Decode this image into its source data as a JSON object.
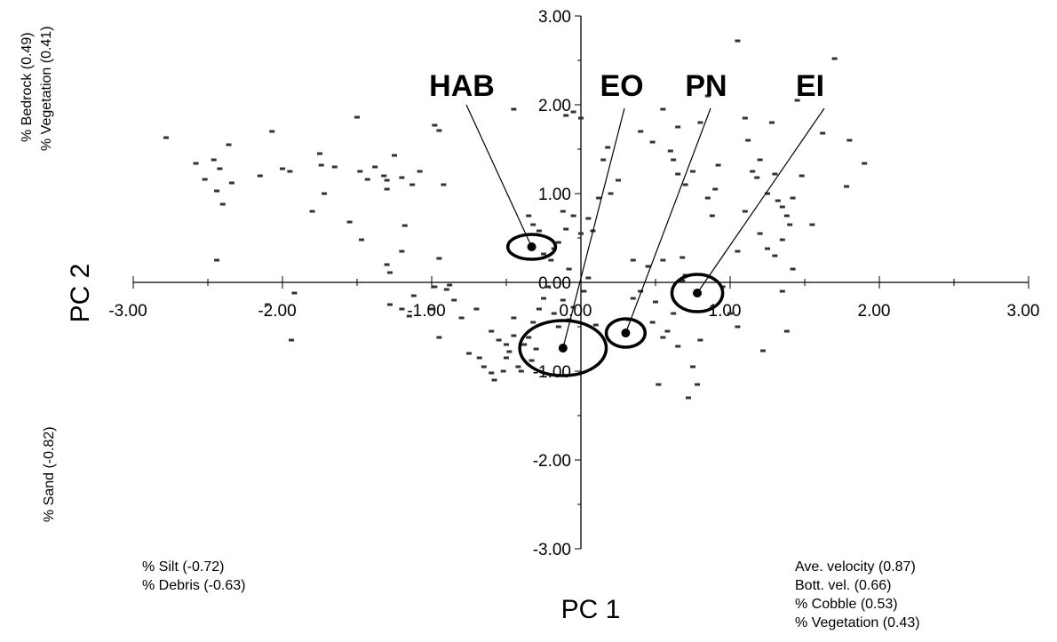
{
  "chart_data": {
    "type": "scatter",
    "xlabel": "PC 1",
    "ylabel": "PC 2",
    "xlim": [
      -3,
      3
    ],
    "ylim": [
      -3,
      3
    ],
    "x_ticks": [
      "-3.00",
      "-2.00",
      "-1.00",
      "0.00",
      "1.00",
      "2.00",
      "3.00"
    ],
    "y_ticks": [
      "3.00",
      "2.00",
      "1.00",
      "0.00",
      "-1.00",
      "-2.00",
      "-3.00"
    ],
    "grid": false,
    "groups": [
      {
        "label": "HAB",
        "x": -0.33,
        "y": 0.4,
        "rx": 0.16,
        "ry": 0.14
      },
      {
        "label": "EO",
        "x": -0.12,
        "y": -0.74,
        "rx": 0.29,
        "ry": 0.31
      },
      {
        "label": "PN",
        "x": 0.3,
        "y": -0.57,
        "rx": 0.13,
        "ry": 0.16
      },
      {
        "label": "EI",
        "x": 0.78,
        "y": -0.12,
        "rx": 0.17,
        "ry": 0.21
      }
    ],
    "points": [
      {
        "x": -2.78,
        "y": 1.63
      },
      {
        "x": -2.58,
        "y": 1.34
      },
      {
        "x": -2.46,
        "y": 1.38
      },
      {
        "x": -2.52,
        "y": 1.16
      },
      {
        "x": -2.44,
        "y": 1.03
      },
      {
        "x": -2.4,
        "y": 0.88
      },
      {
        "x": -2.42,
        "y": 1.28
      },
      {
        "x": -2.36,
        "y": 1.55
      },
      {
        "x": -2.34,
        "y": 1.12
      },
      {
        "x": -2.44,
        "y": 0.25
      },
      {
        "x": -2.07,
        "y": 1.7
      },
      {
        "x": -2.15,
        "y": 1.2
      },
      {
        "x": -2.0,
        "y": 1.28
      },
      {
        "x": -1.95,
        "y": 1.25
      },
      {
        "x": -1.75,
        "y": 1.45
      },
      {
        "x": -1.74,
        "y": 1.32
      },
      {
        "x": -1.65,
        "y": 1.3
      },
      {
        "x": -1.72,
        "y": 1.0
      },
      {
        "x": -1.8,
        "y": 0.8
      },
      {
        "x": -1.55,
        "y": 0.68
      },
      {
        "x": -1.5,
        "y": 1.86
      },
      {
        "x": -1.47,
        "y": 0.48
      },
      {
        "x": -1.38,
        "y": 1.3
      },
      {
        "x": -1.48,
        "y": 1.25
      },
      {
        "x": -1.43,
        "y": 1.16
      },
      {
        "x": -1.32,
        "y": 1.2
      },
      {
        "x": -1.3,
        "y": 1.05
      },
      {
        "x": -1.3,
        "y": 1.15
      },
      {
        "x": -1.25,
        "y": 1.43
      },
      {
        "x": -1.2,
        "y": 1.18
      },
      {
        "x": -1.18,
        "y": 0.64
      },
      {
        "x": -1.13,
        "y": 1.1
      },
      {
        "x": -1.3,
        "y": 0.2
      },
      {
        "x": -1.2,
        "y": 0.35
      },
      {
        "x": -1.08,
        "y": 1.25
      },
      {
        "x": -0.92,
        "y": 1.1
      },
      {
        "x": -0.95,
        "y": 0.27
      },
      {
        "x": -1.28,
        "y": 0.11
      },
      {
        "x": -0.98,
        "y": 1.77
      },
      {
        "x": -0.95,
        "y": 1.71
      },
      {
        "x": -2.1,
        "y": -0.25
      },
      {
        "x": -1.92,
        "y": -0.12
      },
      {
        "x": -1.94,
        "y": -0.65
      },
      {
        "x": -1.28,
        "y": -0.25
      },
      {
        "x": -1.2,
        "y": -0.3
      },
      {
        "x": -1.15,
        "y": -0.38
      },
      {
        "x": -1.12,
        "y": -0.15
      },
      {
        "x": -1.0,
        "y": -0.3
      },
      {
        "x": -0.95,
        "y": -0.62
      },
      {
        "x": -0.98,
        "y": -0.05
      },
      {
        "x": -0.88,
        "y": -0.03
      },
      {
        "x": -0.9,
        "y": -0.08
      },
      {
        "x": -0.85,
        "y": -0.2
      },
      {
        "x": -0.8,
        "y": -0.4
      },
      {
        "x": -0.7,
        "y": -0.3
      },
      {
        "x": -0.75,
        "y": -0.8
      },
      {
        "x": -0.68,
        "y": -0.85
      },
      {
        "x": -0.6,
        "y": -0.55
      },
      {
        "x": -0.65,
        "y": -0.95
      },
      {
        "x": -0.6,
        "y": -1.02
      },
      {
        "x": -0.58,
        "y": -1.1
      },
      {
        "x": -0.52,
        "y": -1.0
      },
      {
        "x": -0.55,
        "y": -0.65
      },
      {
        "x": -0.5,
        "y": -0.7
      },
      {
        "x": -0.48,
        "y": -0.78
      },
      {
        "x": -0.5,
        "y": -0.85
      },
      {
        "x": -0.45,
        "y": -0.4
      },
      {
        "x": -0.45,
        "y": -0.6
      },
      {
        "x": -0.42,
        "y": -0.95
      },
      {
        "x": -0.4,
        "y": -1.0
      },
      {
        "x": -0.38,
        "y": -0.7
      },
      {
        "x": -0.35,
        "y": -0.62
      },
      {
        "x": -0.33,
        "y": -0.88
      },
      {
        "x": -0.3,
        "y": -0.75
      },
      {
        "x": -0.32,
        "y": -0.45
      },
      {
        "x": -0.28,
        "y": -0.3
      },
      {
        "x": -0.25,
        "y": -0.18
      },
      {
        "x": -0.22,
        "y": -0.05
      },
      {
        "x": -0.18,
        "y": -0.35
      },
      {
        "x": -0.15,
        "y": -0.5
      },
      {
        "x": -0.12,
        "y": -0.2
      },
      {
        "x": -0.08,
        "y": -0.42
      },
      {
        "x": -0.05,
        "y": -0.28
      },
      {
        "x": 0.02,
        "y": -0.1
      },
      {
        "x": 0.05,
        "y": 0.05
      },
      {
        "x": 0.1,
        "y": -0.48
      },
      {
        "x": -0.35,
        "y": 0.75
      },
      {
        "x": -0.32,
        "y": 0.65
      },
      {
        "x": -0.28,
        "y": 0.58
      },
      {
        "x": -0.25,
        "y": 0.32
      },
      {
        "x": -0.2,
        "y": 0.25
      },
      {
        "x": -0.18,
        "y": 0.38
      },
      {
        "x": -0.15,
        "y": 0.45
      },
      {
        "x": -0.1,
        "y": 0.6
      },
      {
        "x": -0.08,
        "y": 0.15
      },
      {
        "x": -0.12,
        "y": 0.8
      },
      {
        "x": -0.05,
        "y": 0.75
      },
      {
        "x": 0.0,
        "y": 0.55
      },
      {
        "x": 0.05,
        "y": 0.72
      },
      {
        "x": 0.08,
        "y": 0.58
      },
      {
        "x": 0.12,
        "y": 0.95
      },
      {
        "x": 0.2,
        "y": 1.0
      },
      {
        "x": 0.25,
        "y": 1.15
      },
      {
        "x": 0.15,
        "y": 1.38
      },
      {
        "x": 0.18,
        "y": 1.52
      },
      {
        "x": -0.45,
        "y": 1.95
      },
      {
        "x": -0.05,
        "y": 1.92
      },
      {
        "x": -0.1,
        "y": 1.88
      },
      {
        "x": 0.0,
        "y": 1.85
      },
      {
        "x": 0.4,
        "y": 1.7
      },
      {
        "x": 0.48,
        "y": 1.58
      },
      {
        "x": 0.35,
        "y": 0.25
      },
      {
        "x": 0.4,
        "y": -0.1
      },
      {
        "x": 0.45,
        "y": 0.18
      },
      {
        "x": 0.5,
        "y": -0.22
      },
      {
        "x": 0.48,
        "y": -0.45
      },
      {
        "x": 0.55,
        "y": -0.62
      },
      {
        "x": 0.58,
        "y": -0.55
      },
      {
        "x": 0.62,
        "y": -0.35
      },
      {
        "x": 0.65,
        "y": -0.72
      },
      {
        "x": 0.7,
        "y": 0.08
      },
      {
        "x": 0.68,
        "y": 0.28
      },
      {
        "x": 0.62,
        "y": 1.38
      },
      {
        "x": 0.6,
        "y": 1.48
      },
      {
        "x": 0.65,
        "y": 1.22
      },
      {
        "x": 0.7,
        "y": 1.1
      },
      {
        "x": 0.75,
        "y": 1.25
      },
      {
        "x": 0.8,
        "y": 1.8
      },
      {
        "x": 0.85,
        "y": 0.95
      },
      {
        "x": 0.88,
        "y": 0.75
      },
      {
        "x": 0.9,
        "y": 1.05
      },
      {
        "x": 0.92,
        "y": 1.32
      },
      {
        "x": 0.55,
        "y": 1.95
      },
      {
        "x": 0.65,
        "y": 1.75
      },
      {
        "x": 0.85,
        "y": 2.1
      },
      {
        "x": 1.05,
        "y": 2.72
      },
      {
        "x": 1.1,
        "y": 1.85
      },
      {
        "x": 1.15,
        "y": 1.25
      },
      {
        "x": 1.12,
        "y": 1.6
      },
      {
        "x": 1.2,
        "y": 1.38
      },
      {
        "x": 1.18,
        "y": 1.18
      },
      {
        "x": 1.25,
        "y": 1.0
      },
      {
        "x": 1.3,
        "y": 1.22
      },
      {
        "x": 1.28,
        "y": 1.8
      },
      {
        "x": 1.32,
        "y": 0.92
      },
      {
        "x": 1.35,
        "y": 0.85
      },
      {
        "x": 1.38,
        "y": 0.75
      },
      {
        "x": 1.4,
        "y": 0.65
      },
      {
        "x": 1.35,
        "y": 0.48
      },
      {
        "x": 1.25,
        "y": 0.38
      },
      {
        "x": 1.2,
        "y": 0.55
      },
      {
        "x": 1.3,
        "y": 0.3
      },
      {
        "x": 1.42,
        "y": 0.95
      },
      {
        "x": 1.48,
        "y": 1.2
      },
      {
        "x": 1.45,
        "y": 2.05
      },
      {
        "x": 1.62,
        "y": 1.68
      },
      {
        "x": 1.7,
        "y": 2.52
      },
      {
        "x": 1.78,
        "y": 1.08
      },
      {
        "x": 1.8,
        "y": 1.6
      },
      {
        "x": 1.9,
        "y": 1.34
      },
      {
        "x": 1.55,
        "y": 0.65
      },
      {
        "x": 1.05,
        "y": 0.35
      },
      {
        "x": 1.1,
        "y": 0.8
      },
      {
        "x": 1.42,
        "y": 0.15
      },
      {
        "x": 1.35,
        "y": -0.1
      },
      {
        "x": 1.38,
        "y": -0.55
      },
      {
        "x": 1.05,
        "y": -0.5
      },
      {
        "x": 1.22,
        "y": -0.77
      },
      {
        "x": 1.0,
        "y": -0.35
      },
      {
        "x": 0.95,
        "y": -0.05
      },
      {
        "x": 0.8,
        "y": -0.65
      },
      {
        "x": 0.75,
        "y": -0.95
      },
      {
        "x": 0.72,
        "y": -1.3
      },
      {
        "x": 0.78,
        "y": -1.15
      },
      {
        "x": 0.52,
        "y": -1.15
      },
      {
        "x": 0.35,
        "y": -0.18
      },
      {
        "x": 0.32,
        "y": -0.42
      },
      {
        "x": 0.55,
        "y": 0.25
      },
      {
        "x": 0.68,
        "y": 0.02
      }
    ]
  },
  "annotations": {
    "x_pos": [
      "Ave. velocity (0.87)",
      "Bott. vel. (0.66)",
      "% Cobble (0.53)",
      "% Vegetation (0.43)"
    ],
    "x_neg": [
      "% Silt (-0.72)",
      "% Debris (-0.63)"
    ],
    "y_pos": [
      "% Bedrock (0.49)",
      "% Vegetation (0.41)"
    ],
    "y_neg": [
      "% Sand (-0.82)"
    ]
  },
  "colors": {
    "ink": "#000000",
    "points": "#333333",
    "background": "#ffffff"
  }
}
